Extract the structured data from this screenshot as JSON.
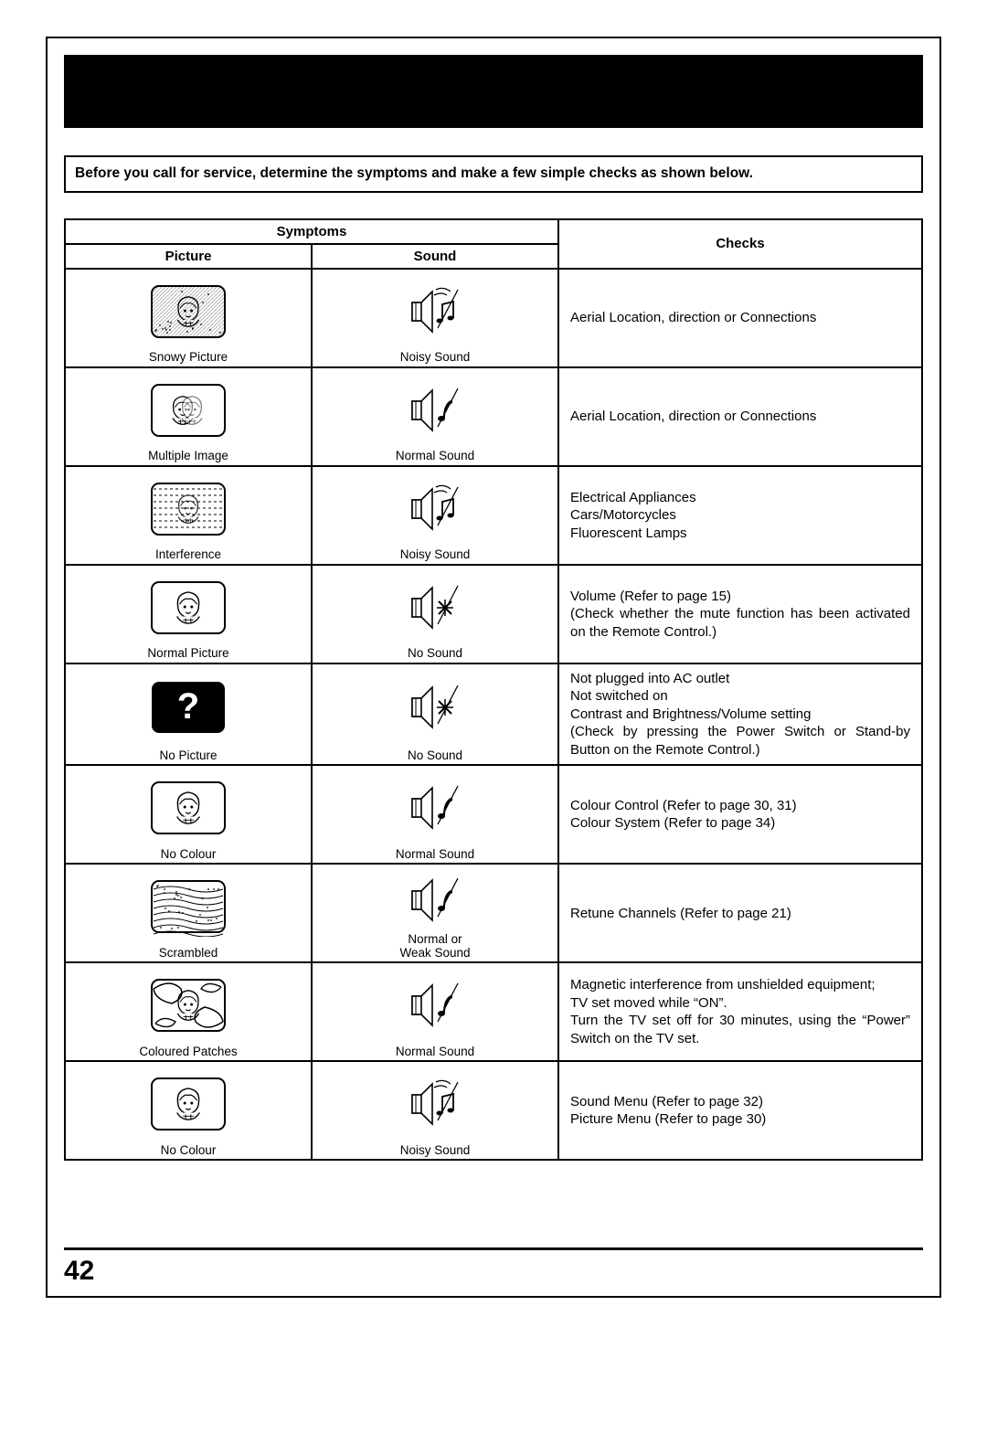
{
  "intro": "Before you call for service, determine the symptoms and make a few simple checks as shown below.",
  "headers": {
    "symptoms": "Symptoms",
    "picture": "Picture",
    "sound": "Sound",
    "checks": "Checks"
  },
  "rows": [
    {
      "picCaption": "Snowy Picture",
      "sndCaption": "Noisy Sound",
      "check": "Aerial Location, direction or Connections"
    },
    {
      "picCaption": "Multiple Image",
      "sndCaption": "Normal Sound",
      "check": "Aerial Location, direction or Connections"
    },
    {
      "picCaption": "Interference",
      "sndCaption": "Noisy Sound",
      "check": "Electrical Appliances\nCars/Motorcycles\nFluorescent Lamps"
    },
    {
      "picCaption": "Normal Picture",
      "sndCaption": "No Sound",
      "check": "Volume (Refer to page 15)\n(Check whether the mute function has been activated on the Remote Control.)",
      "justify": true
    },
    {
      "picCaption": "No Picture",
      "sndCaption": "No Sound",
      "check": "Not plugged into AC outlet\nNot switched on\nContrast and Brightness/Volume setting\n(Check by pressing the Power Switch or Stand-by Button on the Remote Control.)",
      "justify": true
    },
    {
      "picCaption": "No Colour",
      "sndCaption": "Normal Sound",
      "check": "Colour Control (Refer to page 30, 31)\nColour System (Refer to page 34)"
    },
    {
      "picCaption": "Scrambled",
      "sndCaption": "Normal or\nWeak Sound",
      "check": "Retune Channels (Refer to page 21)"
    },
    {
      "picCaption": "Coloured Patches",
      "sndCaption": "Normal Sound",
      "check": "Magnetic interference from unshielded equipment;\nTV set moved while “ON”.\nTurn the TV set off for 30 minutes, using the “Power” Switch on the TV set.",
      "justify": true
    },
    {
      "picCaption": "No Colour",
      "sndCaption": "Noisy Sound",
      "check": "Sound Menu (Refer to page 32)\nPicture Menu (Refer to page 30)"
    }
  ],
  "pageNumber": "42",
  "colors": {
    "fg": "#000000",
    "bg": "#ffffff"
  },
  "columnWidths": {
    "picture": 270,
    "sound": 270,
    "checks": 400
  },
  "fontSizes": {
    "intro": 15.5,
    "cell": 15,
    "caption": 13.5,
    "pageNum": 30
  },
  "pictureIcons": [
    "snowy",
    "ghost",
    "interference",
    "normal",
    "nopicture",
    "nocolour",
    "scrambled",
    "patches",
    "nocolour"
  ],
  "soundIcons": [
    "noisy",
    "normal",
    "noisy",
    "nosound",
    "nosound",
    "normal",
    "normal",
    "normal",
    "noisy"
  ]
}
